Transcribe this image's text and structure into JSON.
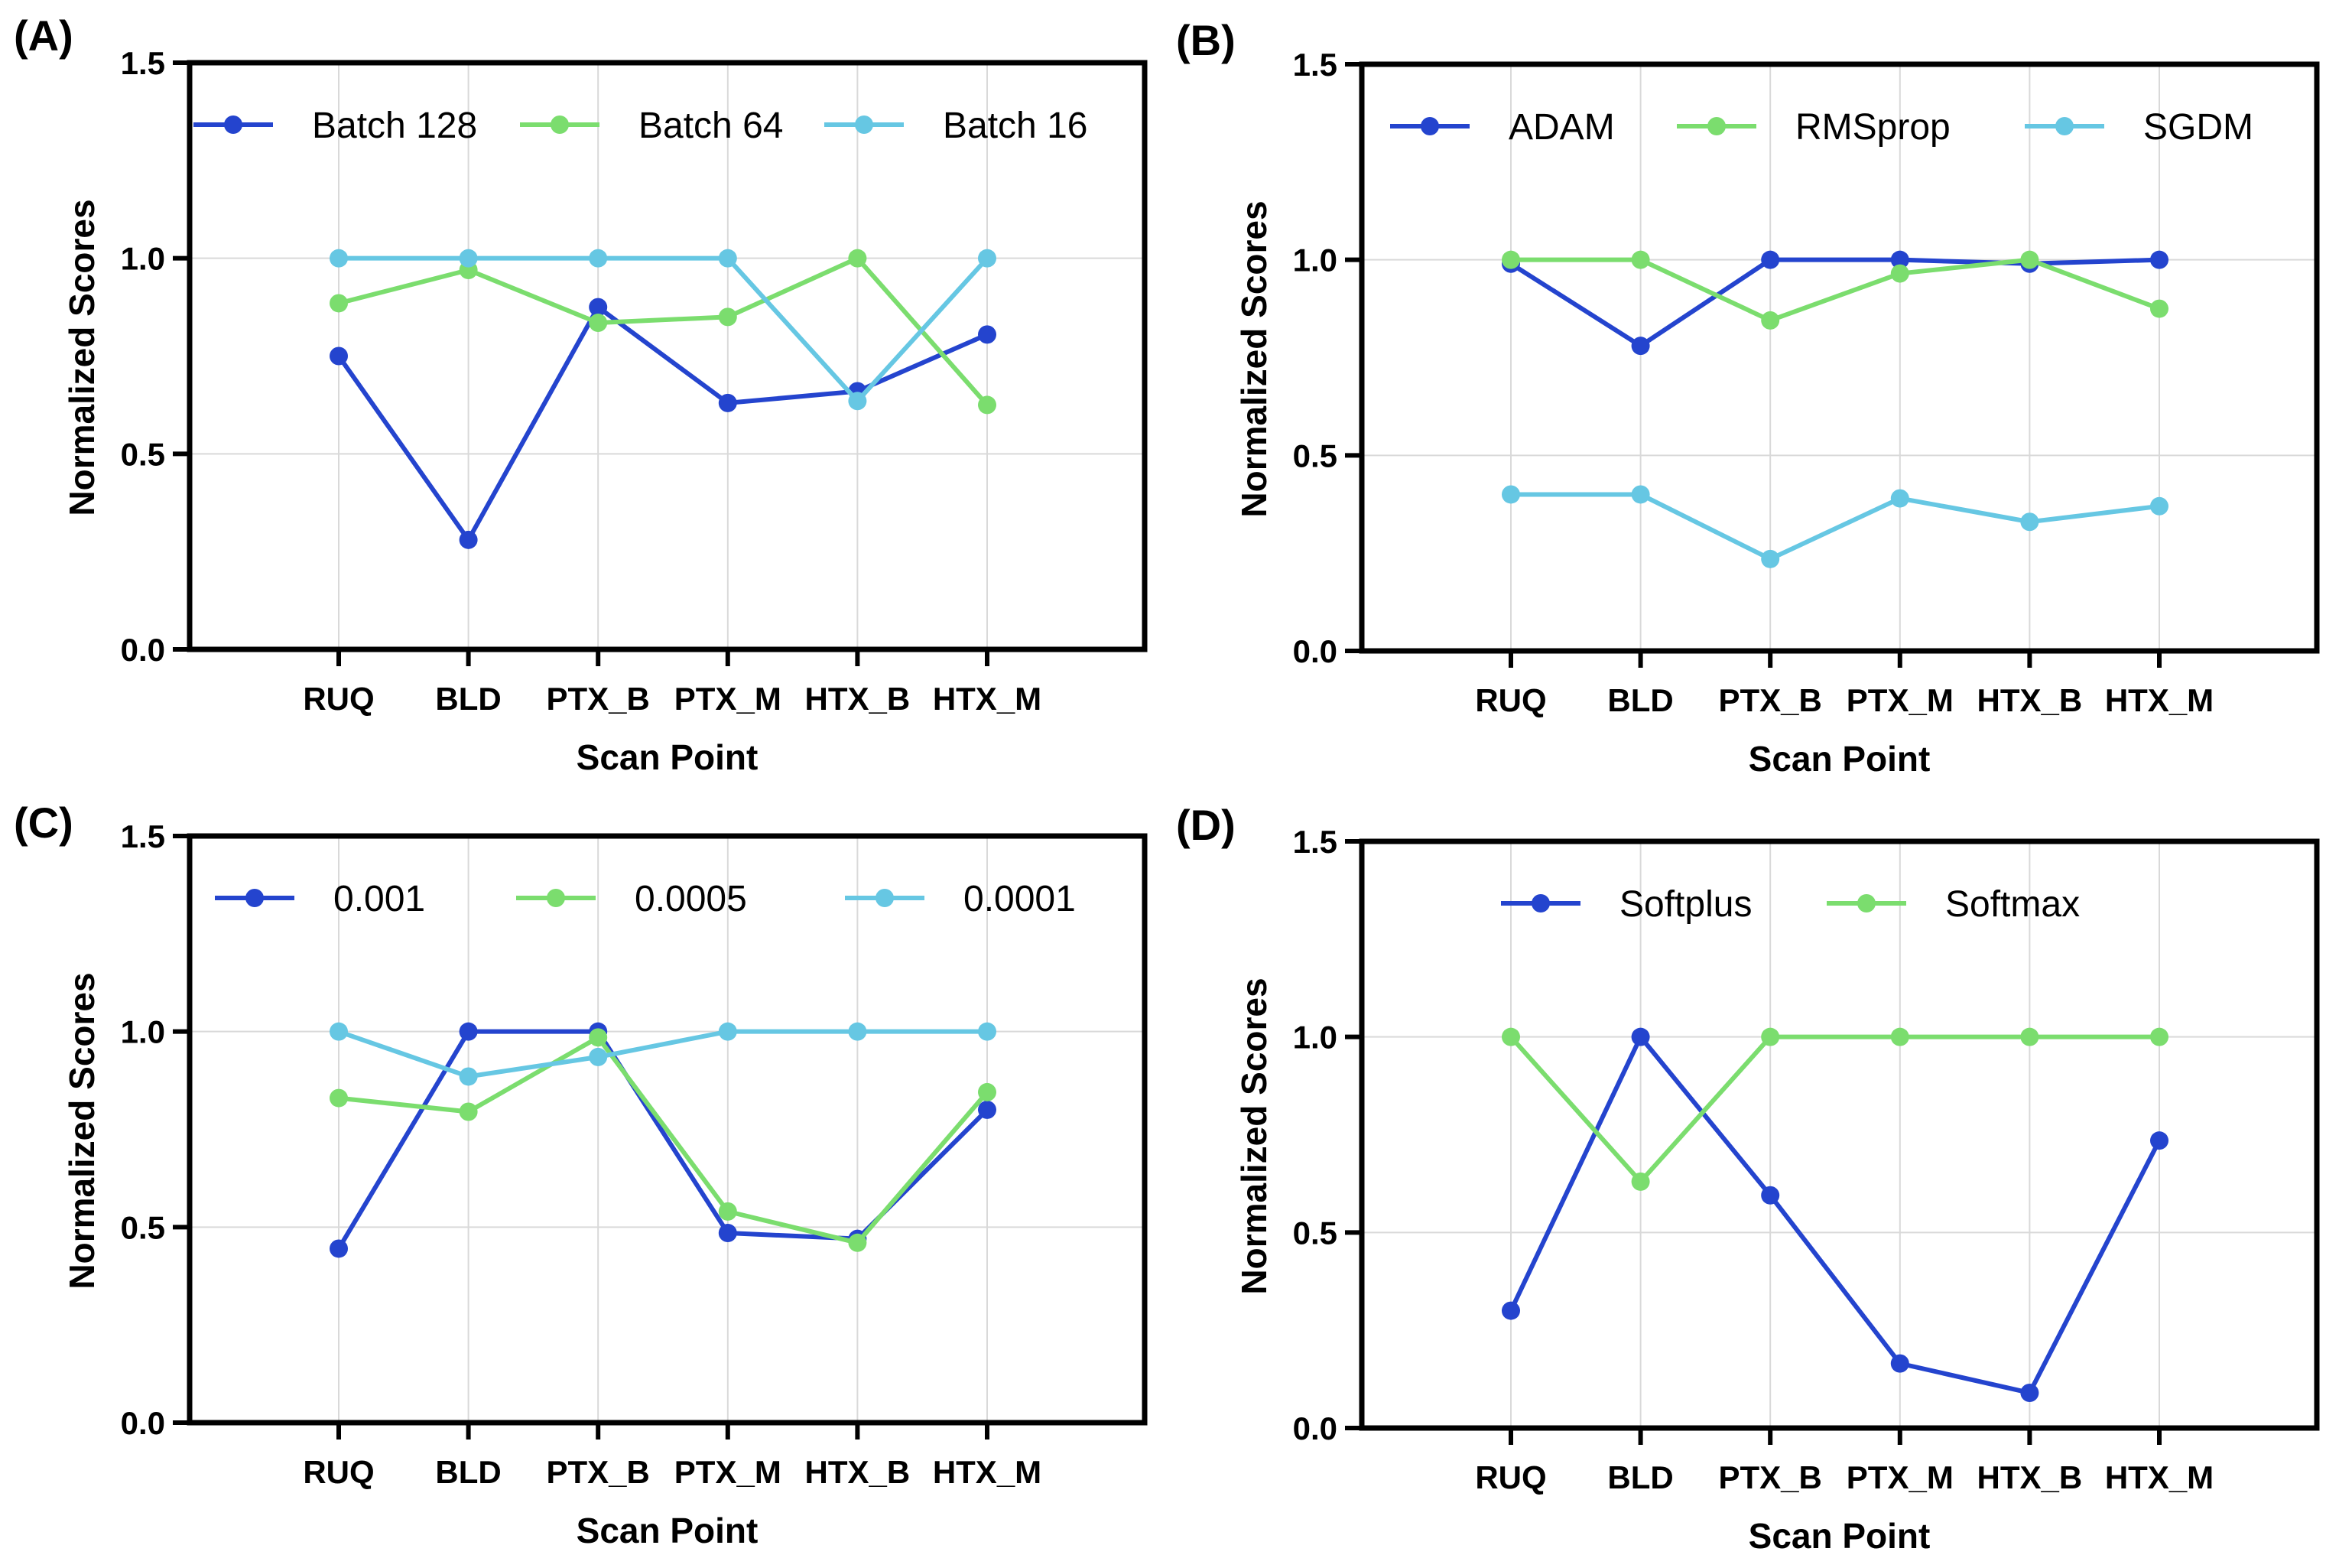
{
  "figure": {
    "colors": {
      "series1": "#2444CE",
      "series2": "#7BDD6E",
      "series3": "#66C7E3",
      "grid": "#d9d9d9",
      "axis": "#000000"
    }
  },
  "chart_data": [
    {
      "panel_label": "(A)",
      "type": "line",
      "xlabel": "Scan Point",
      "ylabel": "Normalized Scores",
      "categories": [
        "RUQ",
        "BLD",
        "PTX_B",
        "PTX_M",
        "HTX_B",
        "HTX_M"
      ],
      "ylim": [
        0,
        1.5
      ],
      "yticks": [
        "0.0",
        "0.5",
        "1.0",
        "1.5"
      ],
      "grid": true,
      "legend_position": "top",
      "series": [
        {
          "name": "Batch 128",
          "values": [
            0.75,
            0.28,
            0.875,
            0.63,
            0.66,
            0.805
          ]
        },
        {
          "name": "Batch 64",
          "values": [
            0.885,
            0.97,
            0.835,
            0.85,
            1.0,
            0.625
          ]
        },
        {
          "name": "Batch 16",
          "values": [
            1.0,
            1.0,
            1.0,
            1.0,
            0.635,
            1.0
          ]
        }
      ]
    },
    {
      "panel_label": "(B)",
      "type": "line",
      "xlabel": "Scan Point",
      "ylabel": "Normalized Scores",
      "categories": [
        "RUQ",
        "BLD",
        "PTX_B",
        "PTX_M",
        "HTX_B",
        "HTX_M"
      ],
      "ylim": [
        0,
        1.5
      ],
      "yticks": [
        "0.0",
        "0.5",
        "1.0",
        "1.5"
      ],
      "grid": true,
      "legend_position": "top",
      "series": [
        {
          "name": "ADAM",
          "values": [
            0.99,
            0.78,
            1.0,
            1.0,
            0.99,
            1.0
          ]
        },
        {
          "name": "RMSprop",
          "values": [
            1.0,
            1.0,
            0.845,
            0.965,
            1.0,
            0.875
          ]
        },
        {
          "name": "SGDM",
          "values": [
            0.4,
            0.4,
            0.235,
            0.39,
            0.33,
            0.37
          ]
        }
      ]
    },
    {
      "panel_label": "(C)",
      "type": "line",
      "xlabel": "Scan Point",
      "ylabel": "Normalized Scores",
      "categories": [
        "RUQ",
        "BLD",
        "PTX_B",
        "PTX_M",
        "HTX_B",
        "HTX_M"
      ],
      "ylim": [
        0,
        1.5
      ],
      "yticks": [
        "0.0",
        "0.5",
        "1.0",
        "1.5"
      ],
      "grid": true,
      "legend_position": "top",
      "series": [
        {
          "name": "0.001",
          "values": [
            0.445,
            1.0,
            1.0,
            0.485,
            0.47,
            0.8
          ]
        },
        {
          "name": "0.0005",
          "values": [
            0.83,
            0.795,
            0.985,
            0.54,
            0.46,
            0.845
          ]
        },
        {
          "name": "0.0001",
          "values": [
            1.0,
            0.885,
            0.935,
            1.0,
            1.0,
            1.0
          ]
        }
      ]
    },
    {
      "panel_label": "(D)",
      "type": "line",
      "xlabel": "Scan Point",
      "ylabel": "Normalized Scores",
      "categories": [
        "RUQ",
        "BLD",
        "PTX_B",
        "PTX_M",
        "HTX_B",
        "HTX_M"
      ],
      "ylim": [
        0,
        1.5
      ],
      "yticks": [
        "0.0",
        "0.5",
        "1.0",
        "1.5"
      ],
      "grid": true,
      "legend_position": "top",
      "series": [
        {
          "name": "Softplus",
          "values": [
            0.3,
            1.0,
            0.595,
            0.165,
            0.09,
            0.735
          ]
        },
        {
          "name": "Softmax",
          "values": [
            1.0,
            0.63,
            1.0,
            1.0,
            1.0,
            1.0
          ]
        }
      ]
    }
  ]
}
